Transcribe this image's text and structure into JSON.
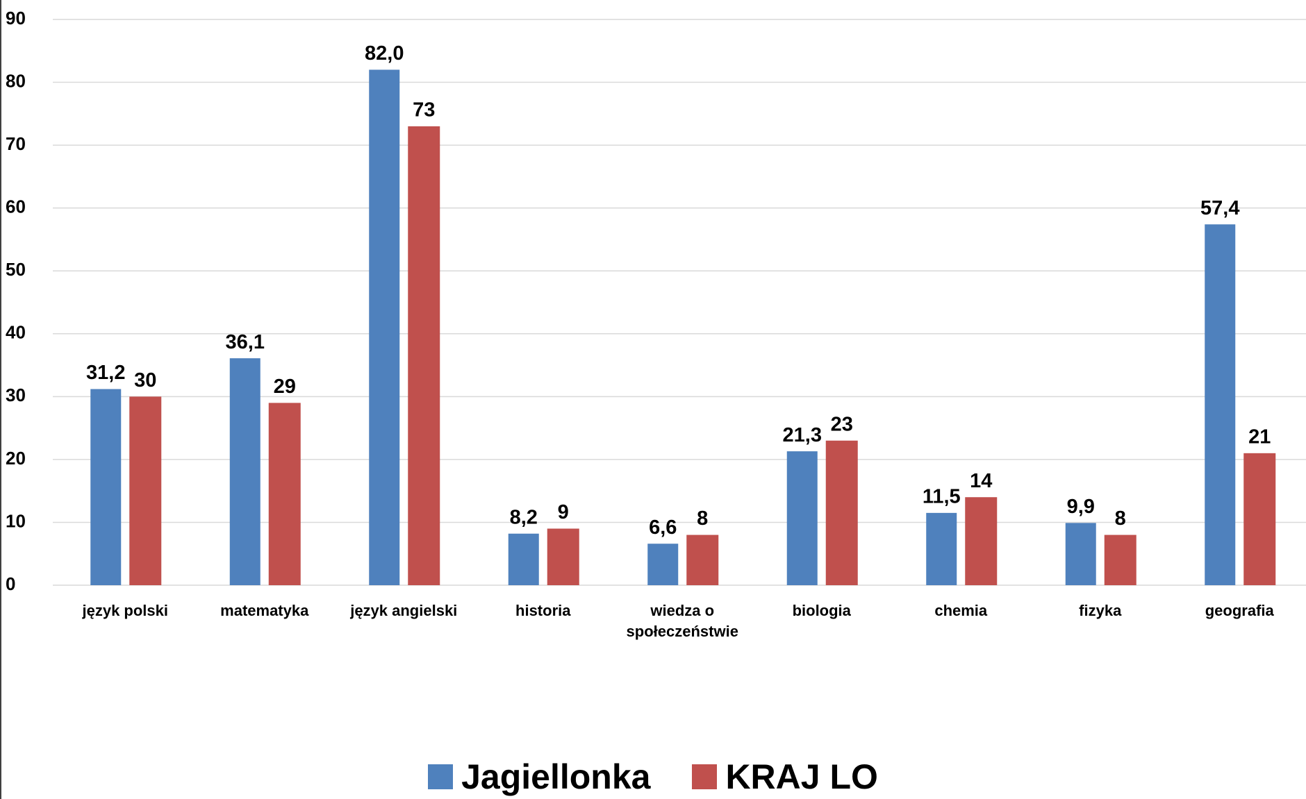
{
  "chart_data": {
    "type": "bar",
    "categories": [
      "język polski",
      "matematyka",
      "język angielski",
      "historia",
      "wiedza o społeczeństwie",
      "biologia",
      "chemia",
      "fizyka",
      "geografia"
    ],
    "series": [
      {
        "name": "Jagiellonka",
        "color": "#4f81bd",
        "values": [
          31.2,
          36.1,
          82.0,
          8.2,
          6.6,
          21.3,
          11.5,
          9.9,
          57.4
        ],
        "value_labels": [
          "31,2",
          "36,1",
          "82,0",
          "8,2",
          "6,6",
          "21,3",
          "11,5",
          "9,9",
          "57,4"
        ]
      },
      {
        "name": "KRAJ LO",
        "color": "#c0504d",
        "values": [
          30,
          29,
          73,
          9,
          8,
          23,
          14,
          8,
          21
        ]
      }
    ],
    "ylim": [
      0,
      90
    ],
    "yticks": [
      0,
      10,
      20,
      30,
      40,
      50,
      60,
      70,
      80,
      90
    ],
    "grid": true,
    "legend": "bottom"
  }
}
